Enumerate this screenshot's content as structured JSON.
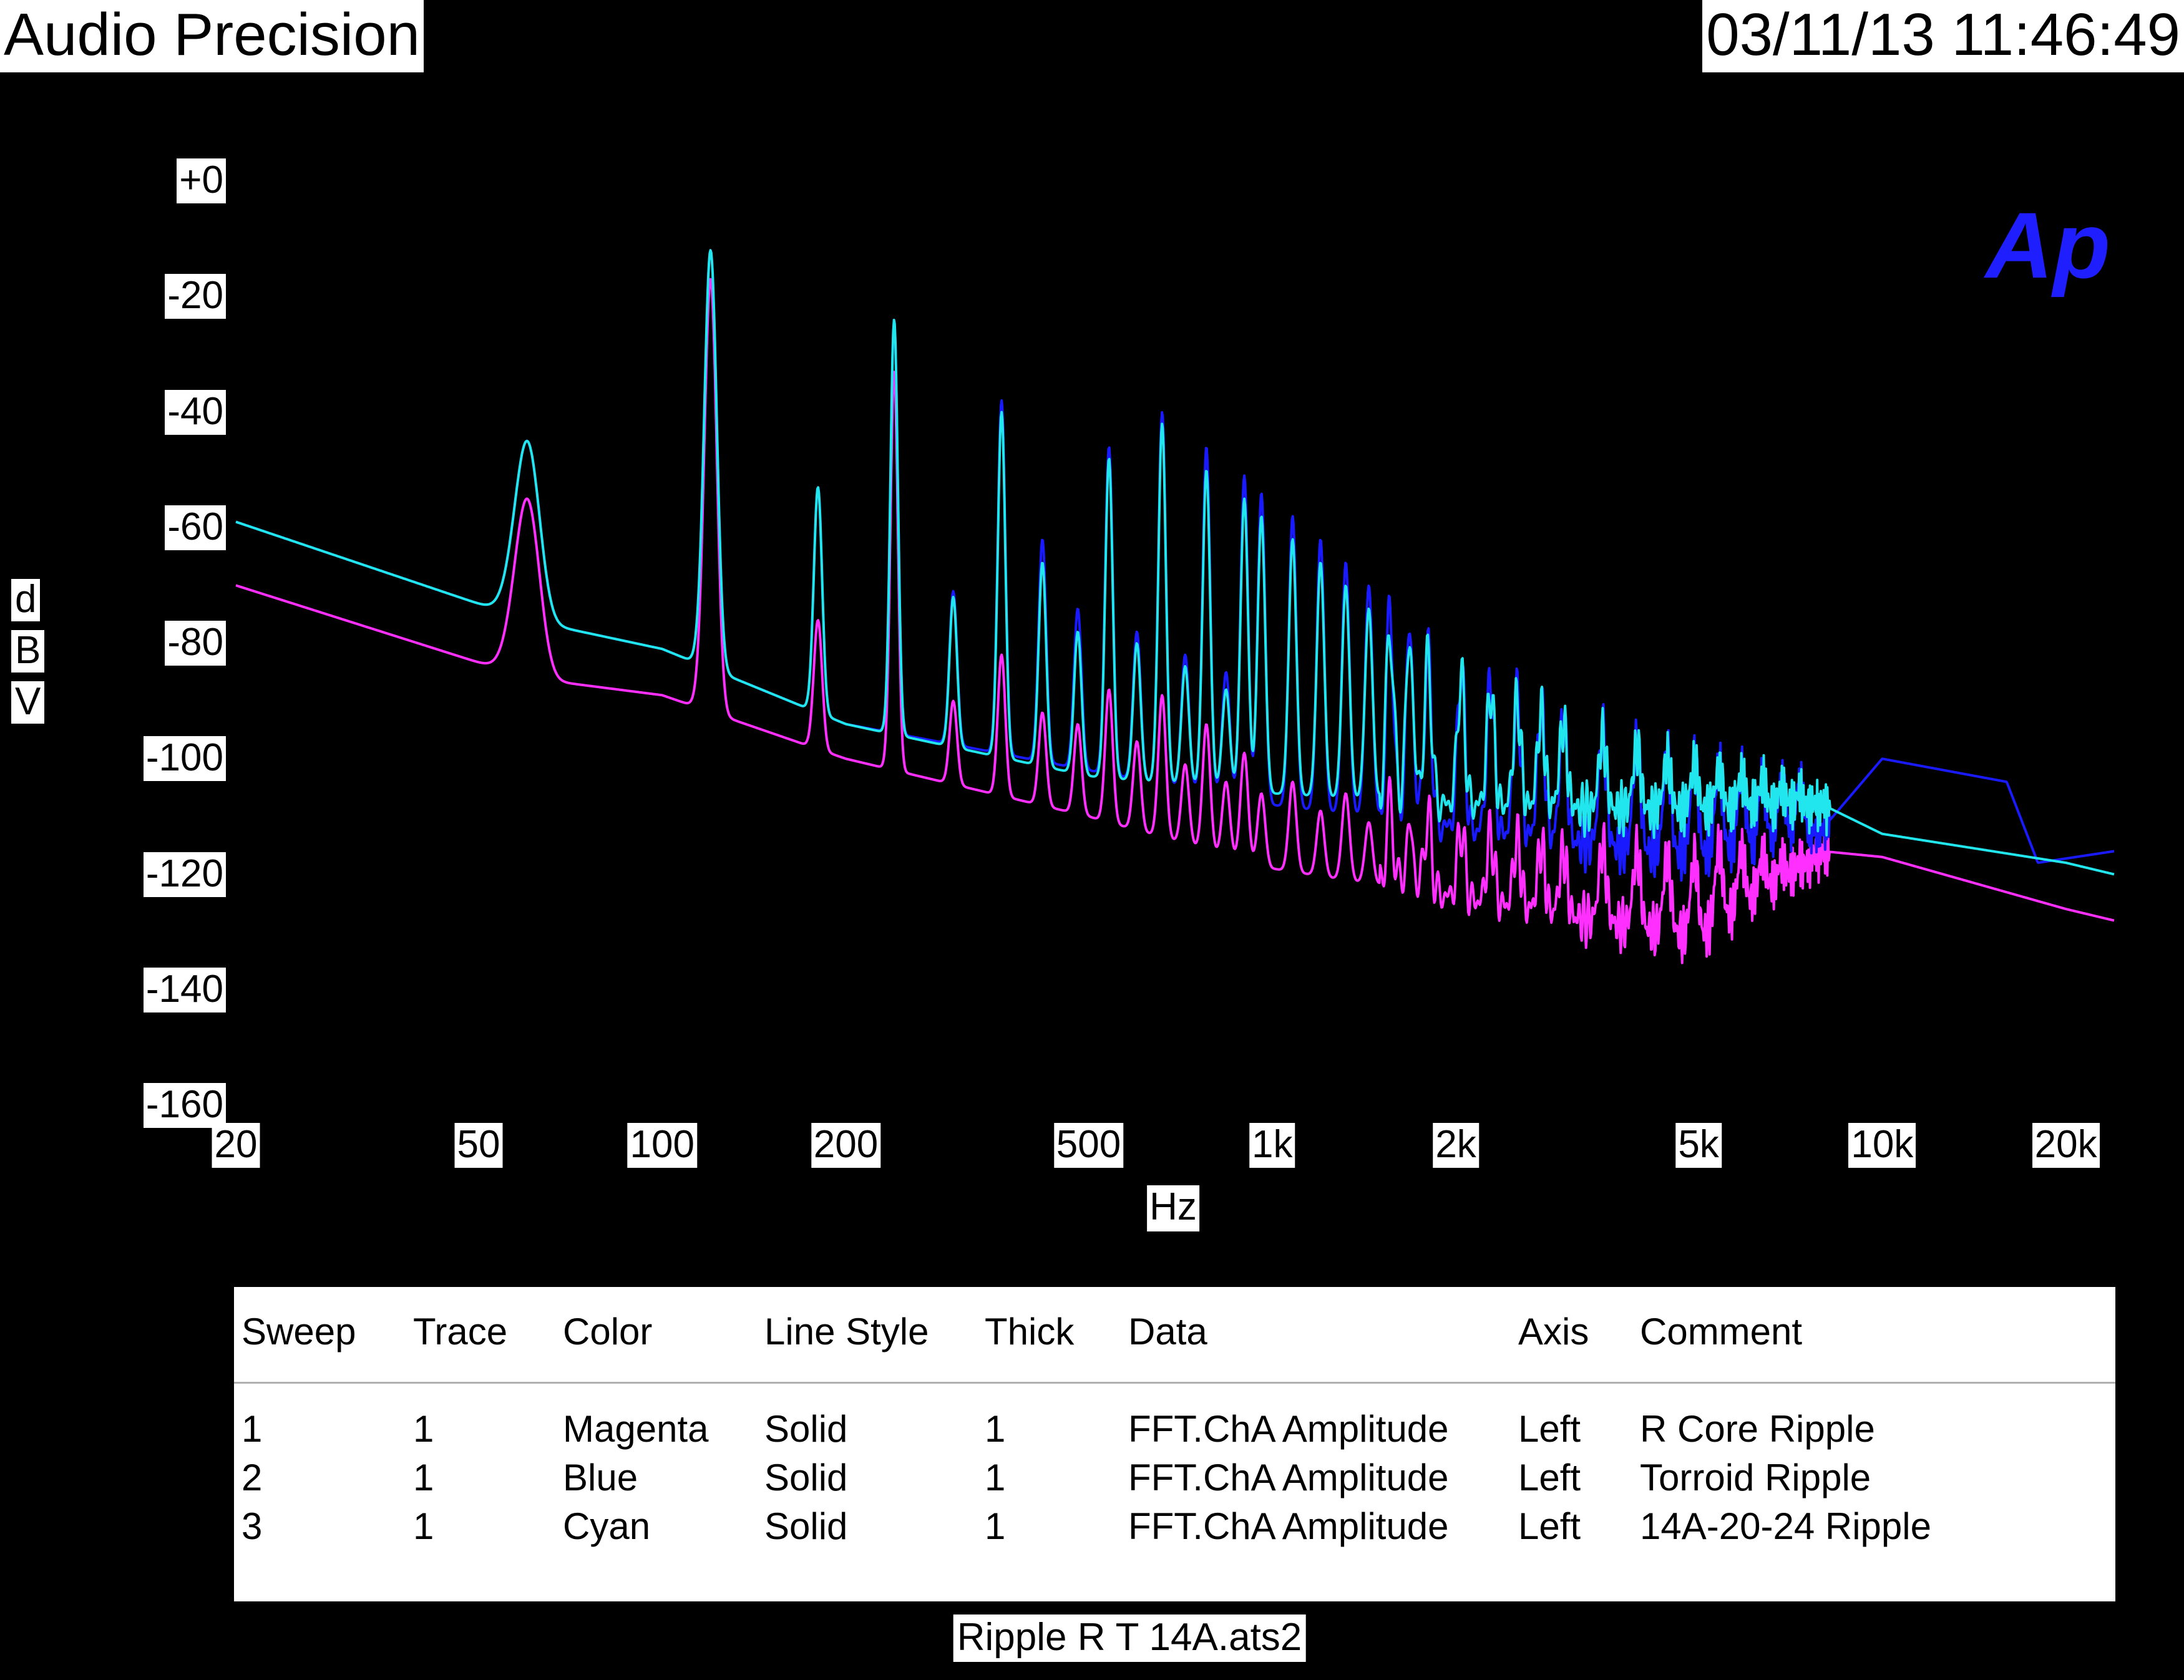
{
  "header": {
    "brand": "Audio Precision",
    "timestamp": "03/11/13 11:46:49"
  },
  "logo": {
    "text": "Ap",
    "color": "#1e1eff"
  },
  "chart_data": {
    "type": "line",
    "title": "",
    "xlabel": "Hz",
    "ylabel": [
      "d",
      "B",
      "V"
    ],
    "x_scale": "log",
    "xlim": [
      20,
      24000
    ],
    "ylim": [
      -160,
      0
    ],
    "x_ticks": [
      {
        "v": 20,
        "label": "20"
      },
      {
        "v": 50,
        "label": "50"
      },
      {
        "v": 100,
        "label": "100"
      },
      {
        "v": 200,
        "label": "200"
      },
      {
        "v": 500,
        "label": "500"
      },
      {
        "v": 1000,
        "label": "1k"
      },
      {
        "v": 2000,
        "label": "2k"
      },
      {
        "v": 5000,
        "label": "5k"
      },
      {
        "v": 10000,
        "label": "10k"
      },
      {
        "v": 20000,
        "label": "20k"
      }
    ],
    "y_ticks": [
      {
        "v": 0,
        "label": "+0"
      },
      {
        "v": -20,
        "label": "-20"
      },
      {
        "v": -40,
        "label": "-40"
      },
      {
        "v": -60,
        "label": "-60"
      },
      {
        "v": -80,
        "label": "-80"
      },
      {
        "v": -100,
        "label": "-100"
      },
      {
        "v": -120,
        "label": "-120"
      },
      {
        "v": -140,
        "label": "-140"
      },
      {
        "v": -160,
        "label": "-160"
      }
    ],
    "grid": false,
    "series": [
      {
        "name": "R Core Ripple",
        "color": "#ff2fff",
        "floor": [
          [
            20,
            -70
          ],
          [
            60,
            -86
          ],
          [
            100,
            -89
          ],
          [
            200,
            -100
          ],
          [
            500,
            -110
          ],
          [
            1000,
            -119
          ],
          [
            2000,
            -124
          ],
          [
            5000,
            -131
          ],
          [
            8000,
            -116
          ],
          [
            10000,
            -117
          ],
          [
            20000,
            -126
          ],
          [
            24000,
            -128
          ]
        ],
        "peaks": [
          [
            60,
            -55
          ],
          [
            120,
            -17
          ],
          [
            180,
            -76
          ],
          [
            240,
            -33
          ],
          [
            300,
            -90
          ],
          [
            360,
            -82
          ],
          [
            420,
            -92
          ],
          [
            480,
            -94
          ],
          [
            540,
            -88
          ],
          [
            600,
            -97
          ],
          [
            660,
            -89
          ],
          [
            720,
            -101
          ],
          [
            780,
            -94
          ],
          [
            840,
            -104
          ],
          [
            900,
            -99
          ],
          [
            960,
            -106
          ],
          [
            1080,
            -104
          ],
          [
            1200,
            -109
          ],
          [
            1320,
            -106
          ],
          [
            1440,
            -111
          ],
          [
            1560,
            -108
          ],
          [
            1680,
            -112
          ],
          [
            1800,
            -110
          ],
          [
            2040,
            -112
          ],
          [
            2280,
            -113
          ],
          [
            2520,
            -114
          ],
          [
            2760,
            -115
          ],
          [
            3000,
            -116
          ],
          [
            3480,
            -115
          ],
          [
            3960,
            -116
          ],
          [
            4440,
            -117
          ],
          [
            4920,
            -117
          ],
          [
            5400,
            -115
          ],
          [
            5880,
            -116
          ],
          [
            6360,
            -117
          ],
          [
            6840,
            -118
          ],
          [
            7320,
            -118
          ]
        ]
      },
      {
        "name": "Torroid Ripple",
        "color": "#1a1aff",
        "floor": [
          [
            20,
            -59
          ],
          [
            60,
            -76
          ],
          [
            100,
            -81
          ],
          [
            200,
            -94
          ],
          [
            500,
            -102
          ],
          [
            1000,
            -108
          ],
          [
            2000,
            -112
          ],
          [
            5000,
            -117
          ],
          [
            8000,
            -112
          ],
          [
            10000,
            -100
          ],
          [
            16000,
            -104
          ],
          [
            18000,
            -118
          ],
          [
            24000,
            -116
          ]
        ],
        "peaks": [
          [
            60,
            -45
          ],
          [
            120,
            -12
          ],
          [
            180,
            -53
          ],
          [
            240,
            -24
          ],
          [
            300,
            -71
          ],
          [
            360,
            -38
          ],
          [
            420,
            -62
          ],
          [
            480,
            -74
          ],
          [
            540,
            -46
          ],
          [
            600,
            -78
          ],
          [
            660,
            -40
          ],
          [
            720,
            -82
          ],
          [
            780,
            -46
          ],
          [
            840,
            -85
          ],
          [
            900,
            -51
          ],
          [
            960,
            -54
          ],
          [
            1080,
            -58
          ],
          [
            1200,
            -62
          ],
          [
            1320,
            -66
          ],
          [
            1440,
            -70
          ],
          [
            1560,
            -74
          ],
          [
            1680,
            -78
          ],
          [
            1800,
            -82
          ],
          [
            2040,
            -84
          ],
          [
            2280,
            -86
          ],
          [
            2520,
            -89
          ],
          [
            2760,
            -91
          ],
          [
            3000,
            -93
          ],
          [
            3480,
            -95
          ],
          [
            3960,
            -97
          ],
          [
            4440,
            -99
          ],
          [
            4920,
            -100
          ],
          [
            5400,
            -101
          ],
          [
            5880,
            -102
          ],
          [
            6360,
            -103
          ],
          [
            6840,
            -104
          ],
          [
            7320,
            -104
          ]
        ]
      },
      {
        "name": "14A-20-24 Ripple",
        "color": "#22e6ee",
        "floor": [
          [
            20,
            -59
          ],
          [
            60,
            -76
          ],
          [
            100,
            -81
          ],
          [
            200,
            -94
          ],
          [
            500,
            -103
          ],
          [
            1000,
            -106
          ],
          [
            2000,
            -108
          ],
          [
            5000,
            -109
          ],
          [
            8000,
            -108
          ],
          [
            10000,
            -113
          ],
          [
            20000,
            -118
          ],
          [
            24000,
            -120
          ]
        ],
        "peaks": [
          [
            60,
            -45
          ],
          [
            120,
            -12
          ],
          [
            180,
            -53
          ],
          [
            240,
            -24
          ],
          [
            300,
            -72
          ],
          [
            360,
            -40
          ],
          [
            420,
            -66
          ],
          [
            480,
            -78
          ],
          [
            540,
            -48
          ],
          [
            600,
            -80
          ],
          [
            660,
            -42
          ],
          [
            720,
            -84
          ],
          [
            780,
            -50
          ],
          [
            840,
            -88
          ],
          [
            900,
            -55
          ],
          [
            960,
            -58
          ],
          [
            1080,
            -62
          ],
          [
            1200,
            -66
          ],
          [
            1320,
            -70
          ],
          [
            1440,
            -74
          ],
          [
            1560,
            -77
          ],
          [
            1680,
            -80
          ],
          [
            1800,
            -83
          ],
          [
            2040,
            -86
          ],
          [
            2280,
            -88
          ],
          [
            2520,
            -90
          ],
          [
            2760,
            -92
          ],
          [
            3000,
            -94
          ],
          [
            3480,
            -96
          ],
          [
            3960,
            -98
          ],
          [
            4440,
            -100
          ],
          [
            4920,
            -101
          ],
          [
            5400,
            -102
          ],
          [
            5880,
            -103
          ],
          [
            6360,
            -104
          ],
          [
            6840,
            -105
          ],
          [
            7320,
            -106
          ]
        ]
      }
    ]
  },
  "legend": {
    "headers": [
      "Sweep",
      "Trace",
      "Color",
      "Line Style",
      "Thick",
      "Data",
      "Axis",
      "Comment"
    ],
    "rows": [
      [
        "1",
        "1",
        "Magenta",
        "Solid",
        "1",
        "FFT.ChA Amplitude",
        "Left",
        "R Core Ripple"
      ],
      [
        "2",
        "1",
        "Blue",
        "Solid",
        "1",
        "FFT.ChA Amplitude",
        "Left",
        "Torroid Ripple"
      ],
      [
        "3",
        "1",
        "Cyan",
        "Solid",
        "1",
        "FFT.ChA Amplitude",
        "Left",
        "14A-20-24 Ripple"
      ]
    ]
  },
  "footer": {
    "filename": "Ripple R T 14A.ats2"
  }
}
